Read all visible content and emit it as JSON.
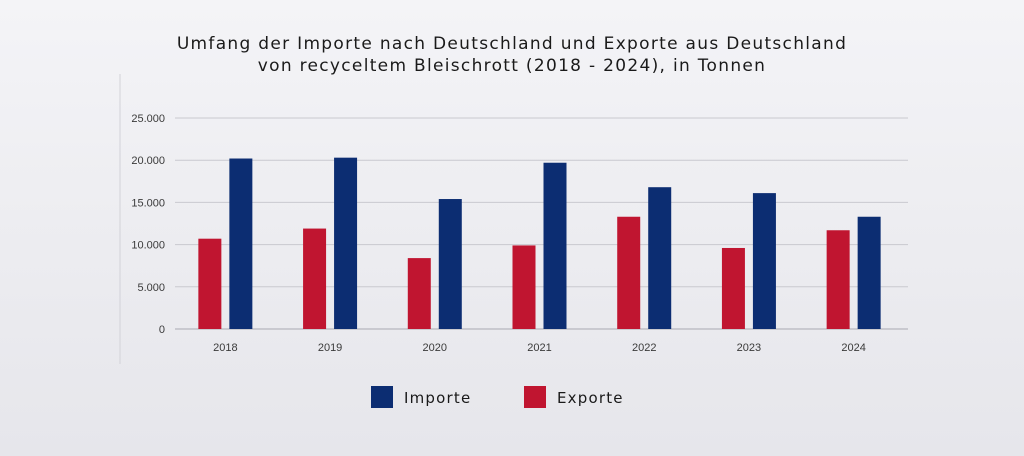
{
  "chart_data": {
    "type": "bar",
    "title": "Umfang der Importe nach Deutschland und Exporte aus Deutschland",
    "subtitle": "von recyceltem Bleischrott (2018 - 2024), in Tonnen",
    "xlabel": "",
    "ylabel": "",
    "categories": [
      "2018",
      "2019",
      "2020",
      "2021",
      "2022",
      "2023",
      "2024"
    ],
    "series": [
      {
        "name": "Exporte",
        "color": "#c01530",
        "values": [
          10700,
          11900,
          8400,
          9900,
          13300,
          9600,
          11700
        ]
      },
      {
        "name": "Importe",
        "color": "#0c2d72",
        "values": [
          20200,
          20300,
          15400,
          19700,
          16800,
          16100,
          13300
        ]
      }
    ],
    "ylim": [
      0,
      25000
    ],
    "yticks": [
      0,
      5000,
      10000,
      15000,
      20000,
      25000
    ],
    "ytick_labels": [
      "0",
      "5.000",
      "10.000",
      "15.000",
      "20.000",
      "25.000"
    ],
    "grid": true,
    "legend": {
      "placement": "bottom-center",
      "order": [
        "Importe",
        "Exporte"
      ]
    }
  }
}
